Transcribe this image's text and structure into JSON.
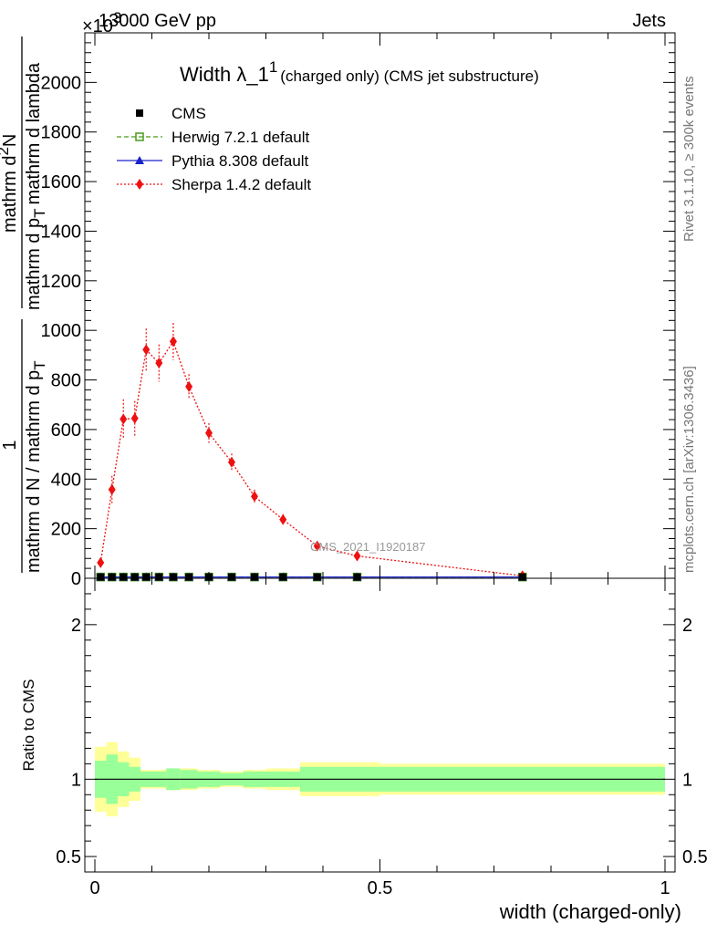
{
  "header": {
    "left": "13000 GeV pp",
    "right": "Jets",
    "exponent": "×10",
    "exponent_power": "3"
  },
  "side_labels": {
    "rivet": "Rivet 3.1.10, ≥ 300k events",
    "mcplots": "mcplots.cern.ch [arXiv:1306.3436]"
  },
  "watermark": "CMS_2021_I1920187",
  "chart_data": [
    {
      "type": "scatter",
      "title": "Width λ_1",
      "title_superscript": "1",
      "subtitle": "(charged only) (CMS jet substructure)",
      "ylabel_parts": {
        "frac1_num": "1",
        "frac1_den": "mathrm d N / mathrm d p",
        "frac1_den_sub": "T",
        "frac2_num": "mathrm d",
        "frac2_num_sup": "2",
        "frac2_num_rest": "N",
        "frac2_den": "mathrm d p",
        "frac2_den_sub": "T",
        "frac2_den_rest": "mathrm d lambda"
      },
      "xlim": [
        0,
        1
      ],
      "ylim": [
        0,
        2200
      ],
      "y_ticks": [
        0,
        200,
        400,
        600,
        800,
        1000,
        1200,
        1400,
        1600,
        1800,
        2000
      ],
      "y_tick_labels": [
        "0",
        "200",
        "400",
        "600",
        "800",
        "1000",
        "1200",
        "1400",
        "1600",
        "1800",
        "2000"
      ],
      "legend_position": "top-left",
      "legend": [
        {
          "label": "CMS",
          "marker": "square",
          "color": "#000000",
          "line": "none"
        },
        {
          "label": "Herwig 7.2.1 default",
          "marker": "open-square",
          "color": "#4a9a1a",
          "line": "dashed"
        },
        {
          "label": "Pythia 8.308 default",
          "marker": "triangle",
          "color": "#1a22cc",
          "line": "solid"
        },
        {
          "label": "Sherpa 1.4.2 default",
          "marker": "diamond",
          "color": "#ee1111",
          "line": "dotted"
        }
      ],
      "bin_edges": [
        0.0,
        0.02,
        0.04,
        0.06,
        0.08,
        0.1,
        0.125,
        0.15,
        0.18,
        0.22,
        0.26,
        0.3,
        0.36,
        0.42,
        0.5,
        1.0
      ],
      "series": [
        {
          "name": "CMS",
          "x": [
            0.01,
            0.03,
            0.05,
            0.07,
            0.09,
            0.1125,
            0.1375,
            0.165,
            0.2,
            0.24,
            0.28,
            0.33,
            0.39,
            0.46,
            0.75
          ],
          "y": [
            5,
            5,
            5,
            5,
            5,
            5,
            5,
            5,
            5,
            5,
            5,
            5,
            5,
            5,
            5
          ]
        },
        {
          "name": "Herwig 7.2.1 default",
          "x": [
            0.01,
            0.03,
            0.05,
            0.07,
            0.09,
            0.1125,
            0.1375,
            0.165,
            0.2,
            0.24,
            0.28,
            0.33,
            0.39,
            0.46,
            0.75
          ],
          "y": [
            5,
            5,
            5,
            5,
            5,
            5,
            5,
            5,
            5,
            5,
            5,
            5,
            5,
            5,
            5
          ]
        },
        {
          "name": "Pythia 8.308 default",
          "x": [
            0.01,
            0.03,
            0.05,
            0.07,
            0.09,
            0.1125,
            0.1375,
            0.165,
            0.2,
            0.24,
            0.28,
            0.33,
            0.39,
            0.46,
            0.75
          ],
          "y": [
            5,
            5,
            5,
            5,
            5,
            5,
            5,
            5,
            5,
            5,
            5,
            5,
            5,
            5,
            5
          ]
        },
        {
          "name": "Sherpa 1.4.2 default",
          "x": [
            0.01,
            0.03,
            0.05,
            0.07,
            0.09,
            0.1125,
            0.1375,
            0.165,
            0.2,
            0.24,
            0.28,
            0.33,
            0.39,
            0.46,
            0.75
          ],
          "y": [
            63,
            358,
            642,
            645,
            922,
            868,
            955,
            773,
            586,
            468,
            330,
            237,
            130,
            90,
            10
          ],
          "yerr": [
            20,
            55,
            80,
            70,
            85,
            75,
            75,
            50,
            40,
            35,
            28,
            22,
            15,
            12,
            5
          ]
        }
      ]
    },
    {
      "type": "band",
      "ylabel": "Ratio to CMS",
      "xlabel": "width (charged-only)",
      "xlim": [
        0,
        1
      ],
      "ylim": [
        0.4,
        2.3
      ],
      "x_ticks": [
        0,
        0.5,
        1
      ],
      "x_tick_labels": [
        "0",
        "0.5",
        "1"
      ],
      "y_ticks": [
        0.5,
        1,
        2
      ],
      "y_tick_labels": [
        "0.5",
        "1",
        "2"
      ],
      "reference_line": 1,
      "bin_edges": [
        0.0,
        0.02,
        0.04,
        0.06,
        0.08,
        0.1,
        0.125,
        0.15,
        0.18,
        0.22,
        0.26,
        0.3,
        0.36,
        0.42,
        0.5,
        1.0
      ],
      "band_inner": [
        0.12,
        0.16,
        0.11,
        0.08,
        0.05,
        0.05,
        0.07,
        0.06,
        0.05,
        0.04,
        0.05,
        0.05,
        0.08,
        0.08,
        0.08,
        0.08
      ],
      "band_outer": [
        0.21,
        0.24,
        0.18,
        0.14,
        0.06,
        0.06,
        0.07,
        0.07,
        0.06,
        0.05,
        0.06,
        0.07,
        0.11,
        0.11,
        0.1,
        0.13
      ],
      "band_colors": {
        "inner": "#99ff99",
        "outer": "#ffff99"
      }
    }
  ]
}
